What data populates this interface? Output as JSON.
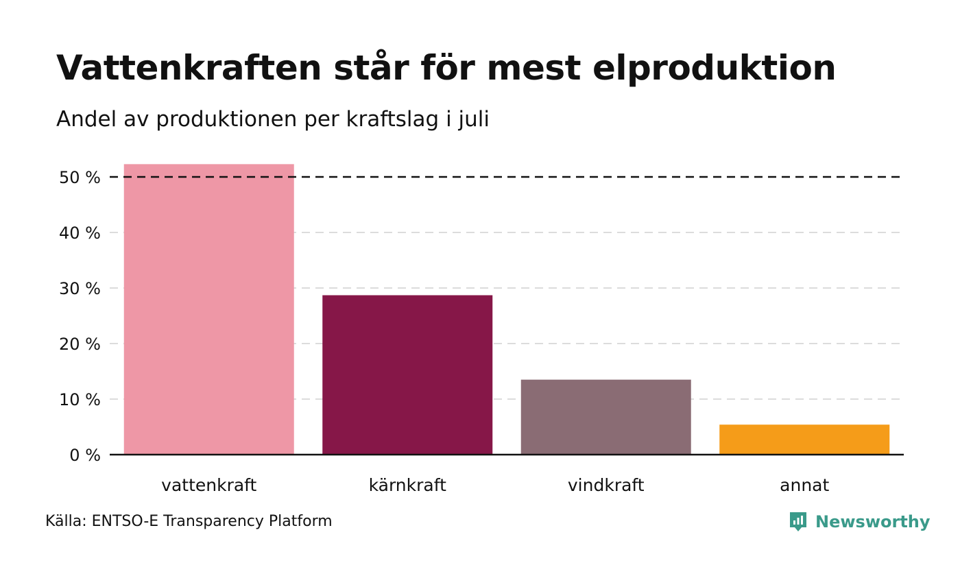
{
  "title": "Vattenkraften står för mest elproduktion",
  "subtitle": "Andel av produktionen per kraftslag i juli",
  "source": "Källa: ENTSO-E Transparency Platform",
  "brand": {
    "name": "Newsworthy",
    "icon": "newsworthy-logo-icon",
    "color": "#3a9a8a"
  },
  "chart_data": {
    "type": "bar",
    "categories": [
      "vattenkraft",
      "kärnkraft",
      "vindkraft",
      "annat"
    ],
    "values": [
      52.3,
      28.7,
      13.5,
      5.4
    ],
    "colors": [
      "#ee97a6",
      "#861748",
      "#8a6c74",
      "#f59c19"
    ],
    "ylim": [
      0,
      50
    ],
    "yticks": [
      0,
      10,
      20,
      30,
      40,
      50
    ],
    "ytick_labels": [
      "0 %",
      "10 %",
      "20 %",
      "30 %",
      "40 %",
      "50 %"
    ],
    "reference_line": 50,
    "grid": true,
    "legend": "none",
    "xlabel": "",
    "ylabel": ""
  }
}
